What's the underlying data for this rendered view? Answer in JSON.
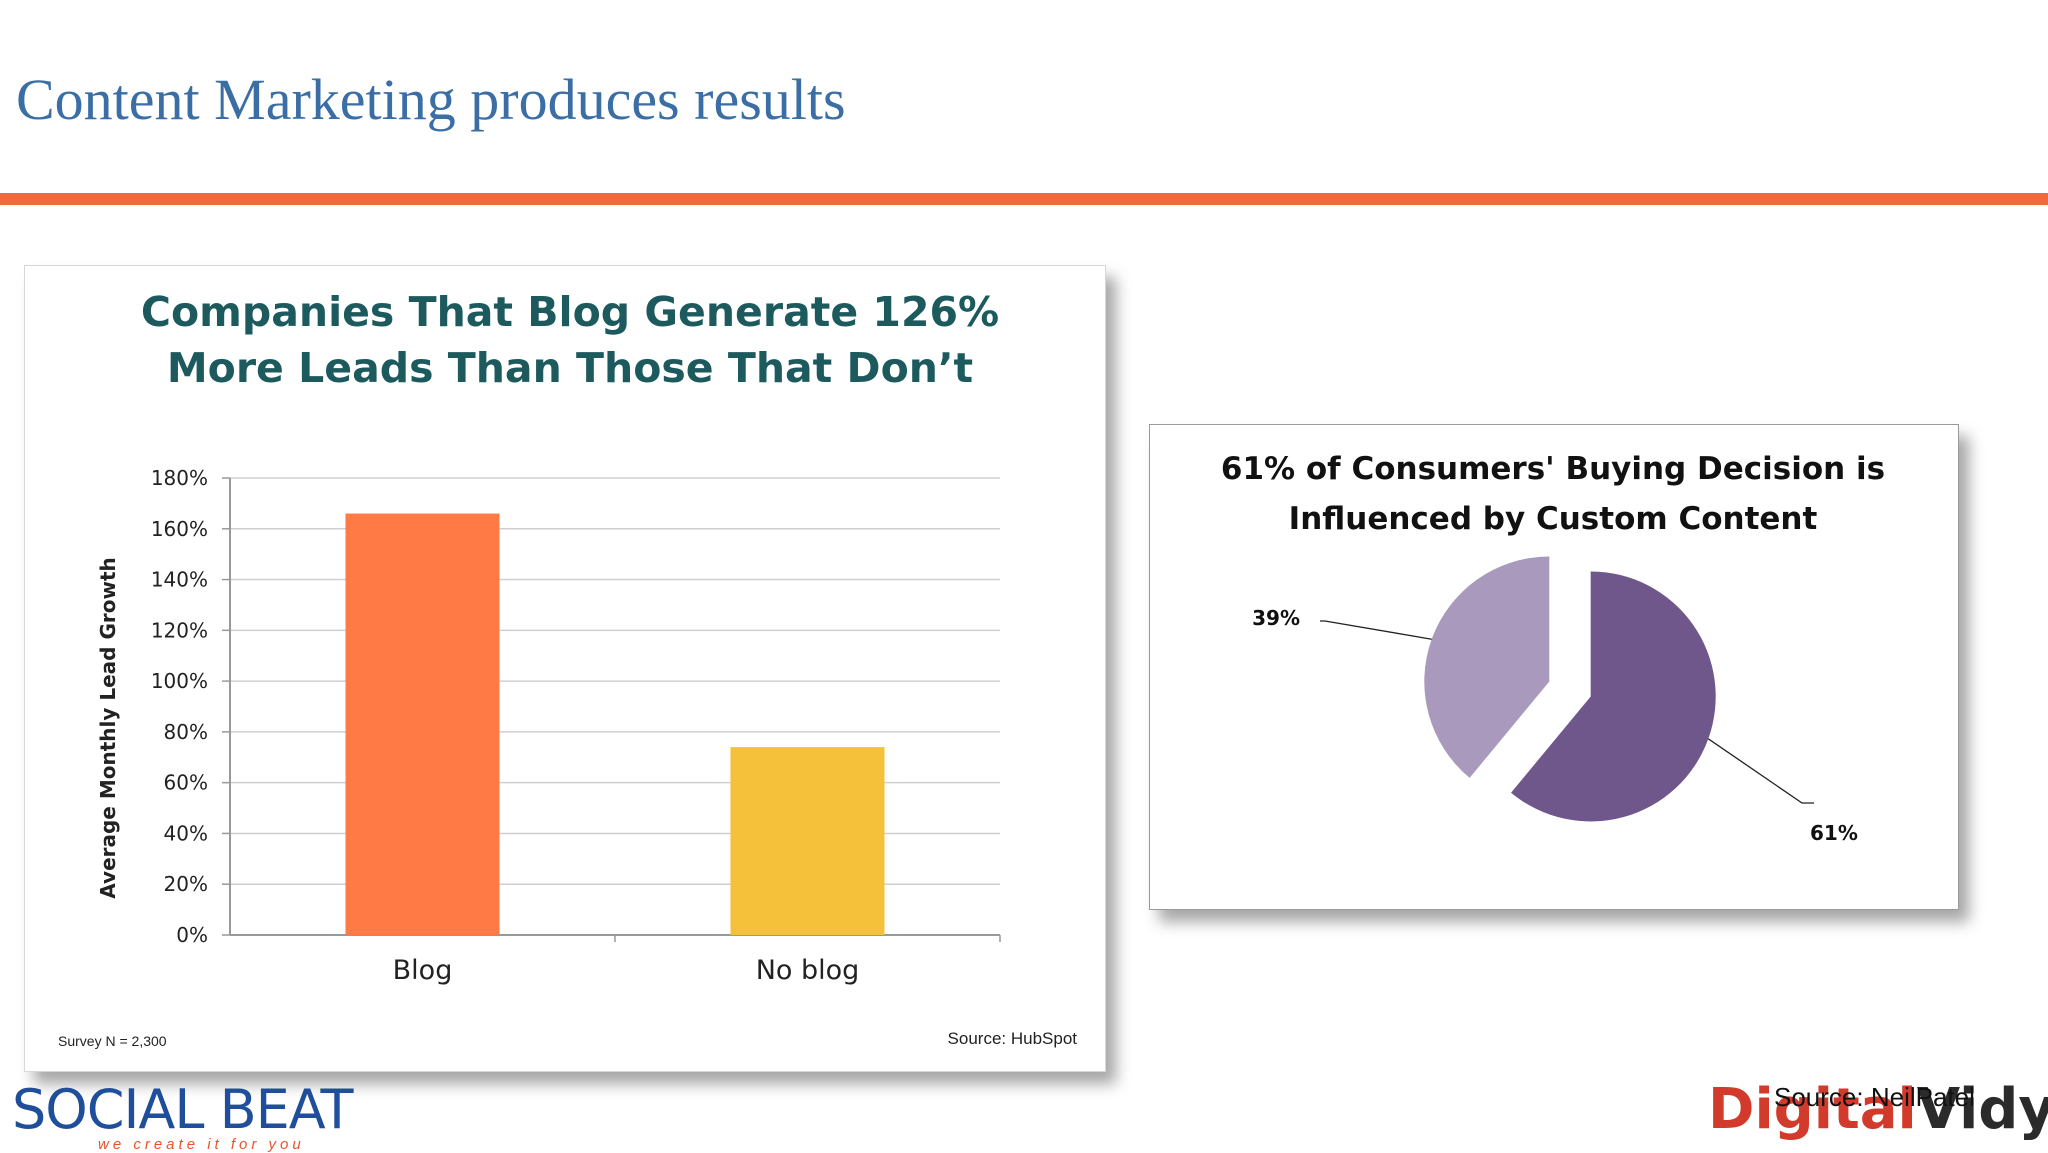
{
  "slide": {
    "title": "Content Marketing produces results",
    "accent_color": "#ee6b3f",
    "title_color": "#3a6ea5",
    "source_note": "Source: NeilPatel"
  },
  "logos": {
    "left_brand": "SOCIAL BEAT",
    "left_tagline": "we create it for you",
    "right_brand_part1": "Digital",
    "right_brand_part2": "Vidya"
  },
  "chart_data": [
    {
      "type": "bar",
      "title": "Companies That Blog Generate 126% More Leads Than Those That Don’t",
      "title_lines": [
        "Companies That Blog Generate 126%",
        "More Leads Than Those That Don’t"
      ],
      "ylabel": "Average Monthly Lead Growth",
      "xlabel": "",
      "categories": [
        "Blog",
        "No blog"
      ],
      "values": [
        166,
        74
      ],
      "colors": [
        "#ff7a45",
        "#f5c13a"
      ],
      "ylim": [
        0,
        180
      ],
      "yticks": [
        "0%",
        "20%",
        "40%",
        "60%",
        "80%",
        "100%",
        "120%",
        "140%",
        "160%",
        "180%"
      ],
      "grid": true,
      "footnote_left": "Survey N = 2,300",
      "footnote_right": "Source: HubSpot"
    },
    {
      "type": "pie",
      "title": "61% of Consumers' Buying Decision is Influenced by Custom Content",
      "title_lines": [
        "61% of Consumers' Buying Decision is",
        "Influenced by Custom Content"
      ],
      "slices": [
        {
          "label": "61%",
          "value": 61,
          "color": "#6f578c"
        },
        {
          "label": "39%",
          "value": 39,
          "color": "#a899bd"
        }
      ]
    }
  ]
}
